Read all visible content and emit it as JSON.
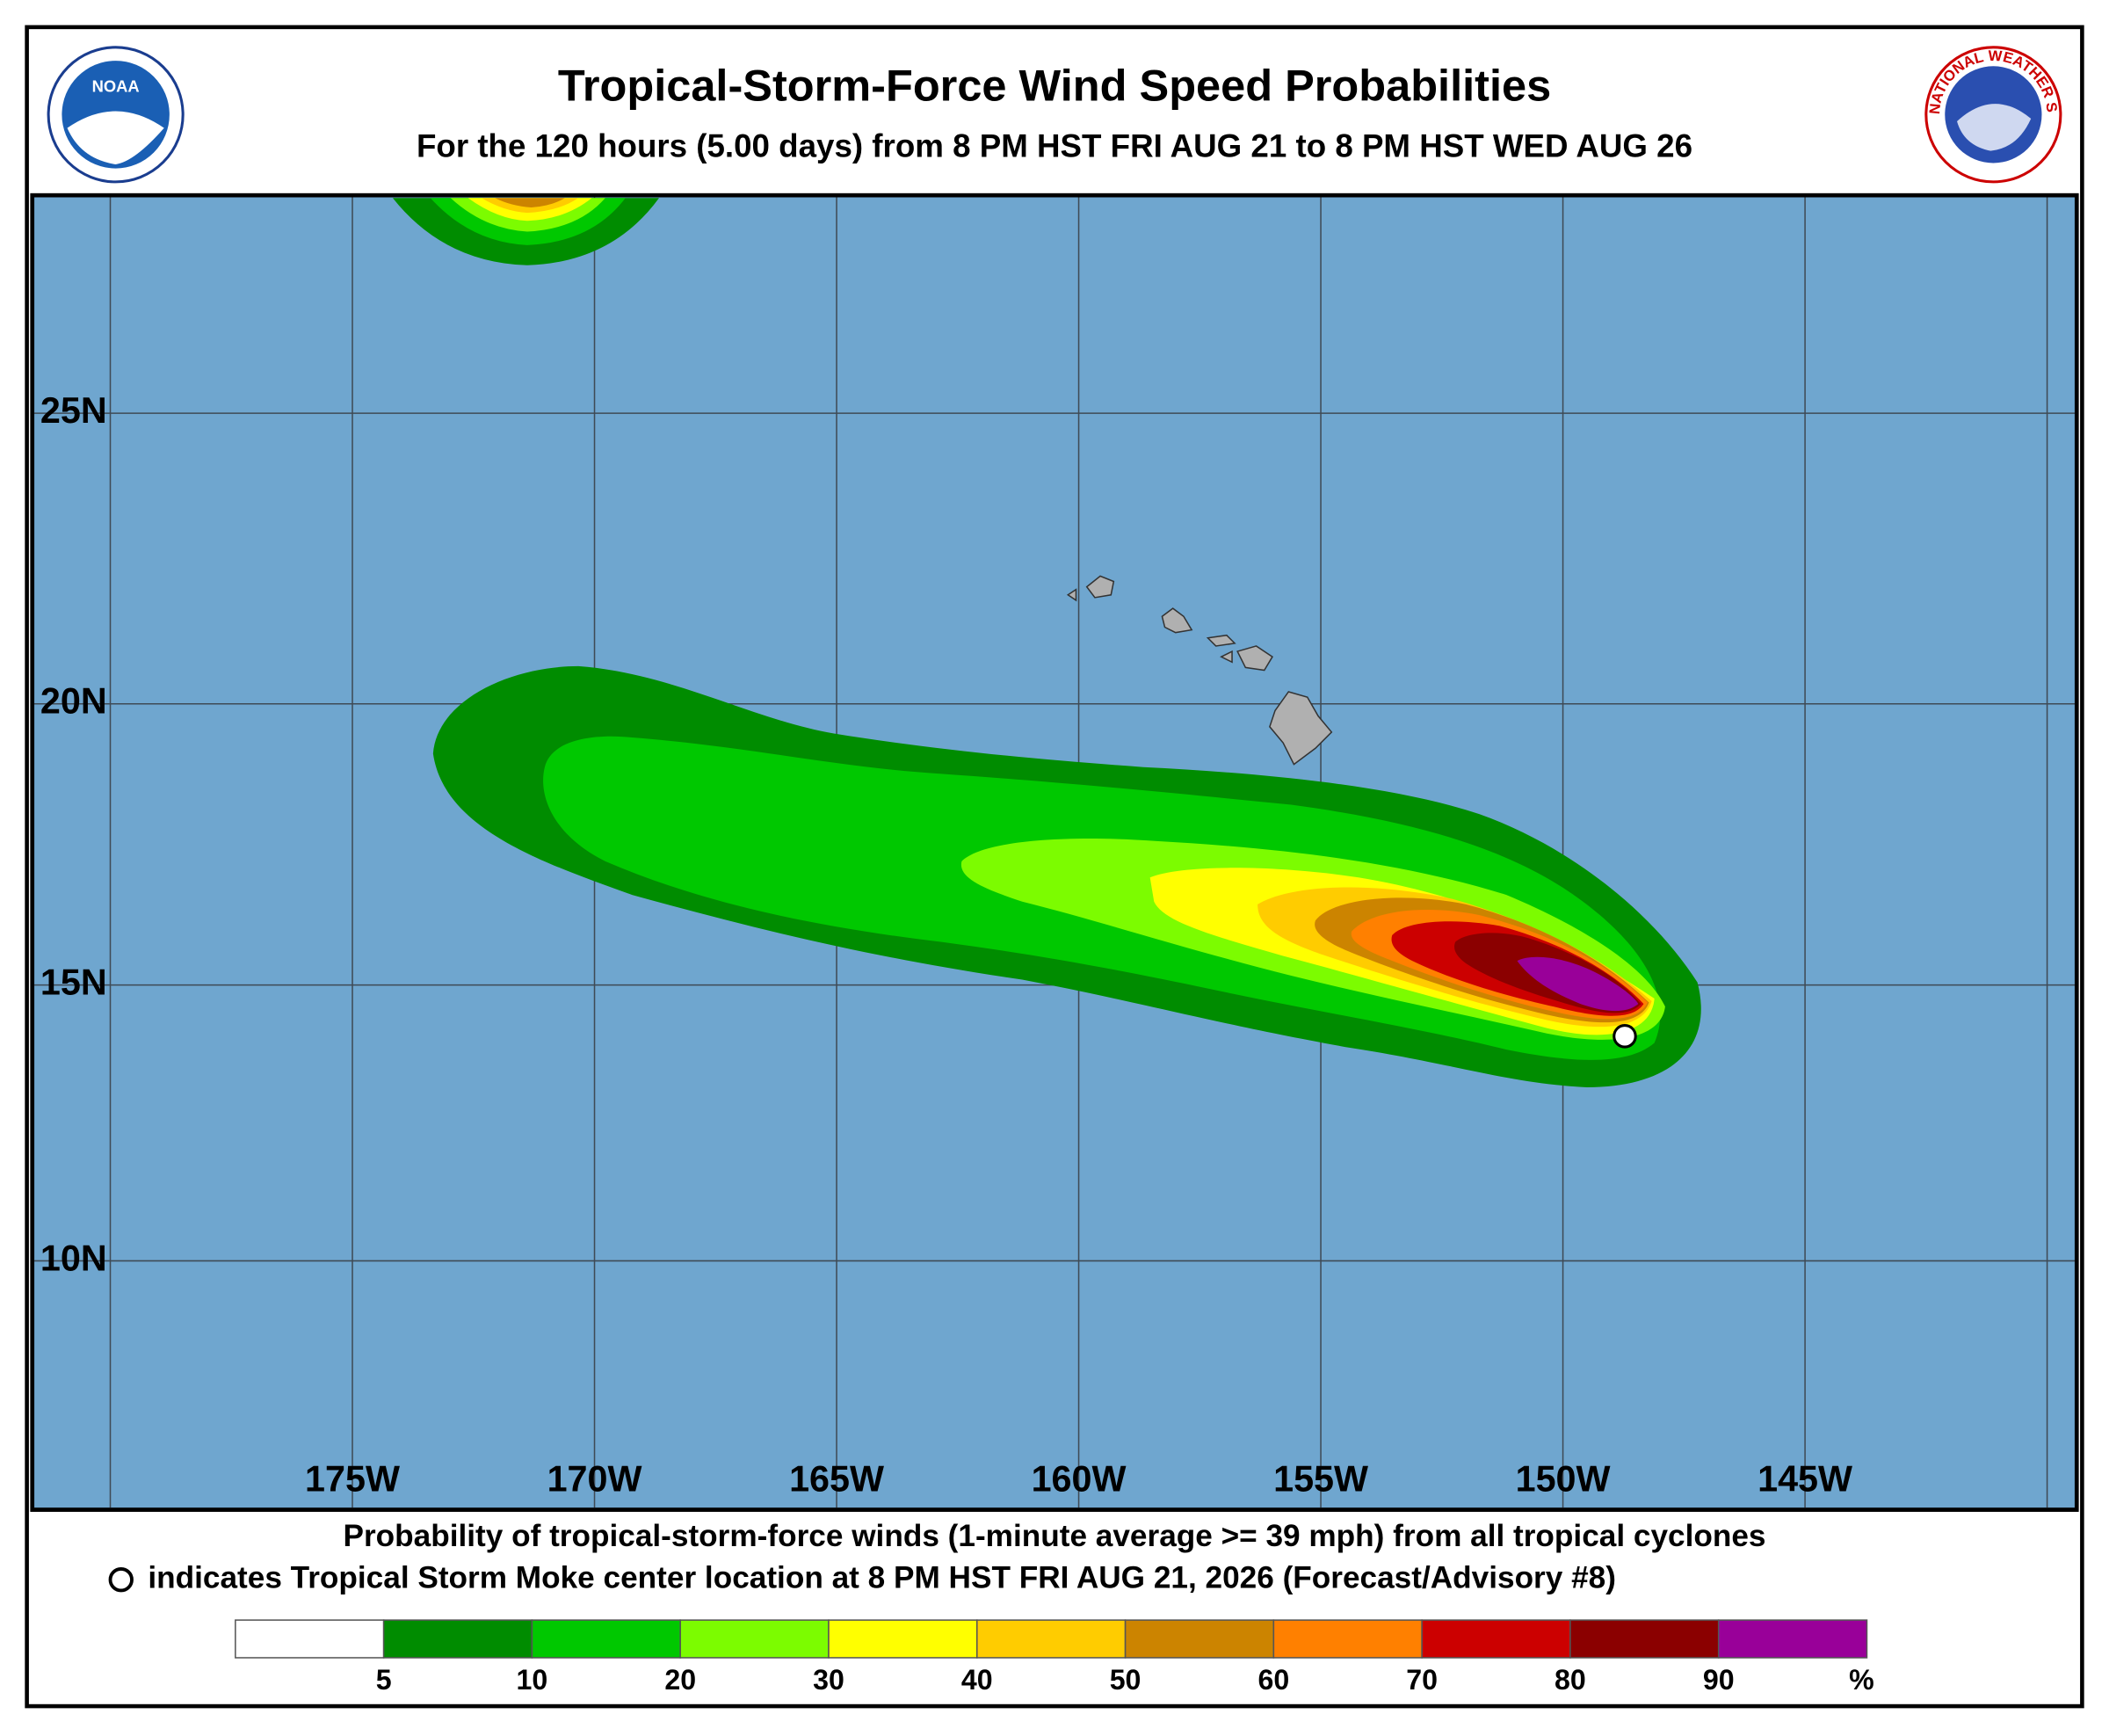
{
  "header": {
    "title": "Tropical-Storm-Force Wind Speed Probabilities",
    "subtitle": "For the 120 hours (5.00 days) from 8 PM HST FRI AUG 21 to 8 PM HST WED AUG 26",
    "noaa_logo": "NOAA",
    "nws_logo": "NATIONAL WEATHER SERVICE"
  },
  "map": {
    "lat_labels": [
      "25N",
      "20N",
      "15N",
      "10N"
    ],
    "lon_labels": [
      "175W",
      "170W",
      "165W",
      "160W",
      "155W",
      "150W",
      "145W"
    ]
  },
  "footer": {
    "line1": "Probability of tropical-storm-force winds (1-minute average >= 39 mph) from all tropical cyclones",
    "line2": "indicates Tropical Storm Moke center location at 8 PM HST FRI AUG 21, 2026 (Forecast/Advisory #8)"
  },
  "legend": {
    "labels": [
      "5",
      "10",
      "20",
      "30",
      "40",
      "50",
      "60",
      "70",
      "80",
      "90"
    ],
    "unit": "%",
    "colors": [
      "#ffffff",
      "#008c00",
      "#00c800",
      "#7cfc00",
      "#ffff00",
      "#ffcc00",
      "#cc8400",
      "#ff8000",
      "#cc0000",
      "#8b0000",
      "#990099"
    ]
  }
}
